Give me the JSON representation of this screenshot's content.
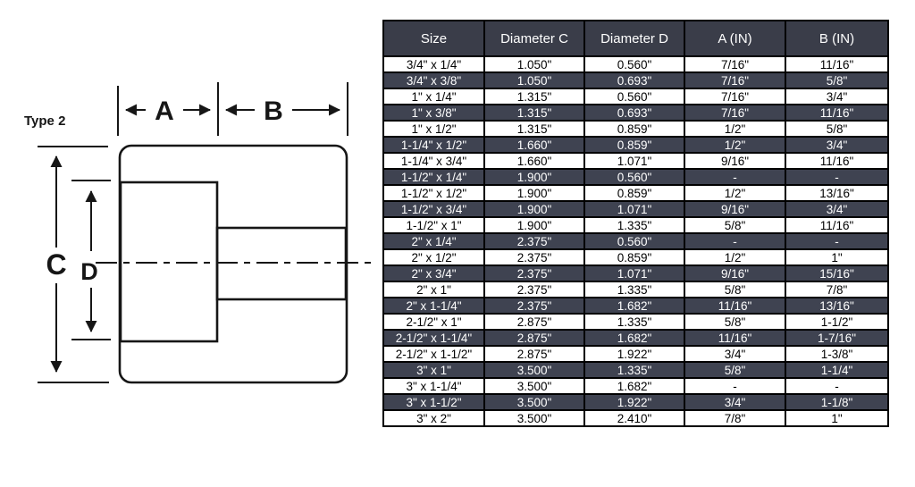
{
  "diagram": {
    "type_label": "Type 2",
    "dim_a_label": "A",
    "dim_b_label": "B",
    "dim_c_label": "C",
    "dim_d_label": "D"
  },
  "table": {
    "columns": [
      "Size",
      "Diameter C",
      "Diameter D",
      "A (IN)",
      "B (IN)"
    ],
    "rows": [
      [
        "3/4\" x 1/4\"",
        "1.050\"",
        "0.560\"",
        "7/16\"",
        "11/16\""
      ],
      [
        "3/4\" x 3/8\"",
        "1.050\"",
        "0.693\"",
        "7/16\"",
        "5/8\""
      ],
      [
        "1\" x 1/4\"",
        "1.315\"",
        "0.560\"",
        "7/16\"",
        "3/4\""
      ],
      [
        "1\" x 3/8\"",
        "1.315\"",
        "0.693\"",
        "7/16\"",
        "11/16\""
      ],
      [
        "1\" x 1/2\"",
        "1.315\"",
        "0.859\"",
        "1/2\"",
        "5/8\""
      ],
      [
        "1-1/4\" x 1/2\"",
        "1.660\"",
        "0.859\"",
        "1/2\"",
        "3/4\""
      ],
      [
        "1-1/4\" x 3/4\"",
        "1.660\"",
        "1.071\"",
        "9/16\"",
        "11/16\""
      ],
      [
        "1-1/2\" x 1/4\"",
        "1.900\"",
        "0.560\"",
        "-",
        "-"
      ],
      [
        "1-1/2\" x 1/2\"",
        "1.900\"",
        "0.859\"",
        "1/2\"",
        "13/16\""
      ],
      [
        "1-1/2\" x 3/4\"",
        "1.900\"",
        "1.071\"",
        "9/16\"",
        "3/4\""
      ],
      [
        "1-1/2\" x 1\"",
        "1.900\"",
        "1.335\"",
        "5/8\"",
        "11/16\""
      ],
      [
        "2\" x 1/4\"",
        "2.375\"",
        "0.560\"",
        "-",
        "-"
      ],
      [
        "2\" x 1/2\"",
        "2.375\"",
        "0.859\"",
        "1/2\"",
        "1\""
      ],
      [
        "2\" x 3/4\"",
        "2.375\"",
        "1.071\"",
        "9/16\"",
        "15/16\""
      ],
      [
        "2\" x 1\"",
        "2.375\"",
        "1.335\"",
        "5/8\"",
        "7/8\""
      ],
      [
        "2\" x 1-1/4\"",
        "2.375\"",
        "1.682\"",
        "11/16\"",
        "13/16\""
      ],
      [
        "2-1/2\" x 1\"",
        "2.875\"",
        "1.335\"",
        "5/8\"",
        "1-1/2\""
      ],
      [
        "2-1/2\" x 1-1/4\"",
        "2.875\"",
        "1.682\"",
        "11/16\"",
        "1-7/16\""
      ],
      [
        "2-1/2\" x 1-1/2\"",
        "2.875\"",
        "1.922\"",
        "3/4\"",
        "1-3/8\""
      ],
      [
        "3\" x 1\"",
        "3.500\"",
        "1.335\"",
        "5/8\"",
        "1-1/4\""
      ],
      [
        "3\" x 1-1/4\"",
        "3.500\"",
        "1.682\"",
        "-",
        "-"
      ],
      [
        "3\" x 1-1/2\"",
        "3.500\"",
        "1.922\"",
        "3/4\"",
        "1-1/8\""
      ],
      [
        "3\" x 2\"",
        "3.500\"",
        "2.410\"",
        "7/8\"",
        "1\""
      ]
    ]
  },
  "colors": {
    "header_bg": "#3a3d49",
    "row_dark_bg": "#3f4351",
    "row_light_bg": "#ffffff",
    "border": "#000000",
    "hatch_fill": "#cbcbcb",
    "hatch_line": "#3a3a3a",
    "drawing_line": "#161616"
  }
}
